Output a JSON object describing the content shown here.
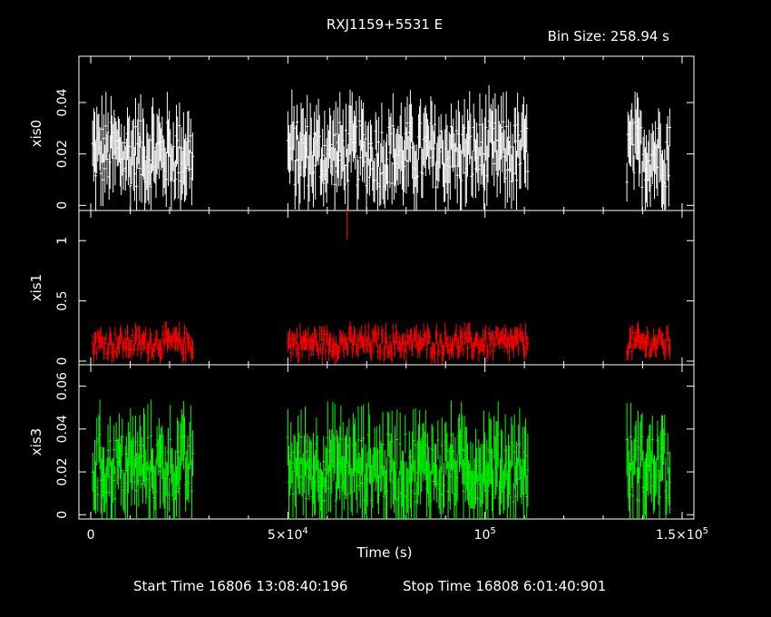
{
  "chart_data": {
    "type": "scatter",
    "title": "RXJ1159+5531 E",
    "bin_size_label": "Bin Size: 258.94 s",
    "xlabel": "Time (s)",
    "x_tick_labels": [
      {
        "text": "0",
        "x": 0
      },
      {
        "text": "5×10",
        "sup": "4",
        "x": 50000
      },
      {
        "text": "10",
        "sup": "5",
        "x": 100000
      },
      {
        "text": "1.5×10",
        "sup": "5",
        "x": 150000
      }
    ],
    "xlim": [
      -3000,
      153000
    ],
    "segments": [
      [
        500,
        26000
      ],
      [
        50000,
        111000
      ],
      [
        136000,
        147000
      ]
    ],
    "footer": {
      "start": "Start Time 16806 13:08:40:196",
      "stop": "Stop Time 16808  6:01:40:901"
    },
    "colors": {
      "xis0": "#ffffff",
      "xis1": "#ff0000",
      "xis3": "#00ff00",
      "axes": "#ffffff"
    },
    "panels": [
      {
        "name": "xis0",
        "ylabel": "xis0",
        "ylim": [
          -0.002,
          0.058
        ],
        "yticks": [
          0,
          0.02,
          0.04
        ],
        "ytick_labels": [
          "0",
          "0.02",
          "0.04"
        ],
        "mean": 0.02,
        "spread": 0.013
      },
      {
        "name": "xis1",
        "ylabel": "xis1",
        "ylim": [
          -0.03,
          1.25
        ],
        "yticks": [
          0,
          0.5,
          1
        ],
        "ytick_labels": [
          "0",
          "0.5",
          "1"
        ],
        "mean": 0.15,
        "spread": 0.09,
        "outlier": {
          "x": 65000,
          "y": 1.15,
          "err": 0.14
        }
      },
      {
        "name": "xis3",
        "ylabel": "xis3",
        "ylim": [
          -0.002,
          0.07
        ],
        "yticks": [
          0,
          0.02,
          0.04,
          0.06
        ],
        "ytick_labels": [
          "0",
          "0.02",
          "0.04",
          "0.06"
        ],
        "mean": 0.022,
        "spread": 0.016
      }
    ]
  }
}
